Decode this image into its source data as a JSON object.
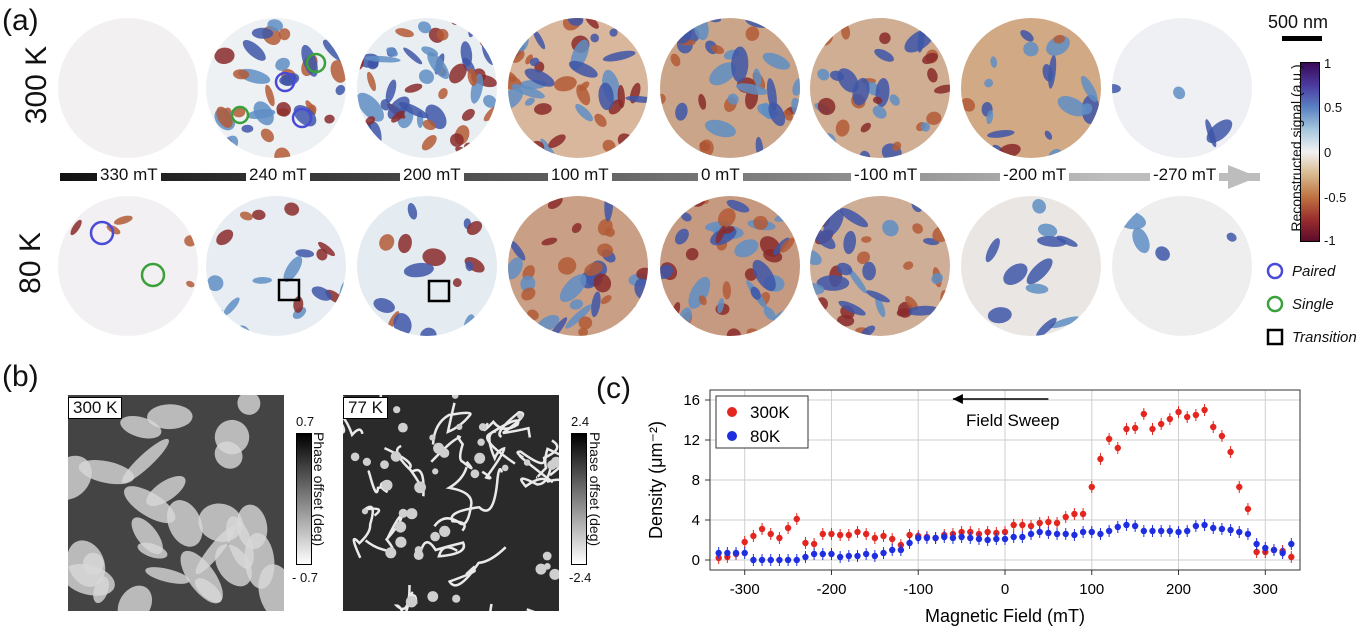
{
  "panel_a": {
    "label": "(a)",
    "row_top_temp": "300 K",
    "row_bottom_temp": "80 K",
    "fields": [
      "330 mT",
      "240 mT",
      "200 mT",
      "100 mT",
      "0 mT",
      "-100 mT",
      "-200 mT",
      "-270 mT"
    ],
    "scalebar": "500 nm",
    "colorbar": {
      "title": "Reconstructed signal (a.u.)",
      "ticks": [
        "1",
        "0.5",
        "0",
        "-0.5",
        "-1"
      ]
    },
    "legend": {
      "paired": "Paired",
      "single": "Single",
      "transition": "Transition"
    }
  },
  "panel_b": {
    "label": "(b)",
    "left": {
      "temp": "300 K",
      "max": "0.7",
      "min": "- 0.7",
      "title": "Phase offset (deg)"
    },
    "right": {
      "temp": "77 K",
      "max": "2.4",
      "min": "-2.4",
      "title": "Phase offset (deg)"
    }
  },
  "panel_c": {
    "label": "(c)"
  },
  "chart_data": {
    "type": "scatter",
    "xlabel": "Magnetic Field (mT)",
    "ylabel": "Density (μm⁻²)",
    "annotation": "Field Sweep",
    "xlim": [
      -340,
      340
    ],
    "ylim": [
      -1,
      17
    ],
    "xticks": [
      -300,
      -200,
      -100,
      0,
      100,
      200,
      300
    ],
    "yticks": [
      0,
      4,
      8,
      12,
      16
    ],
    "legend_position": "top-left",
    "series": [
      {
        "name": "300K",
        "color": "#e3261f",
        "x": [
          -330,
          -320,
          -310,
          -300,
          -290,
          -280,
          -270,
          -260,
          -250,
          -240,
          -230,
          -220,
          -210,
          -200,
          -190,
          -180,
          -170,
          -160,
          -150,
          -140,
          -130,
          -120,
          -110,
          -100,
          -90,
          -80,
          -70,
          -60,
          -50,
          -40,
          -30,
          -20,
          -10,
          0,
          10,
          20,
          30,
          40,
          50,
          60,
          70,
          80,
          90,
          100,
          110,
          120,
          130,
          140,
          150,
          160,
          170,
          180,
          190,
          200,
          210,
          220,
          230,
          240,
          250,
          260,
          270,
          280,
          290,
          300,
          310,
          320,
          330
        ],
        "y": [
          0.2,
          0.3,
          0.6,
          1.8,
          2.4,
          3.1,
          2.6,
          2.2,
          3.2,
          4.1,
          1.7,
          1.6,
          2.6,
          2.6,
          2.5,
          2.5,
          2.8,
          2.6,
          2.2,
          2.4,
          2.1,
          1.5,
          2.5,
          2.4,
          2.3,
          2.2,
          2.5,
          2.6,
          2.8,
          2.8,
          2.6,
          2.8,
          2.7,
          2.8,
          3.5,
          3.5,
          3.4,
          3.7,
          3.8,
          3.7,
          4.3,
          4.6,
          4.6,
          7.3,
          10.1,
          12.1,
          11.2,
          13.1,
          13.2,
          14.6,
          13.1,
          13.6,
          14.1,
          14.8,
          14.3,
          14.5,
          15.0,
          13.3,
          12.4,
          10.8,
          7.3,
          5.1,
          0.8,
          0.8,
          1.0,
          0.9,
          0.3
        ]
      },
      {
        "name": "80K",
        "color": "#1f2ee0",
        "x": [
          -330,
          -320,
          -310,
          -300,
          -290,
          -280,
          -270,
          -260,
          -250,
          -240,
          -230,
          -220,
          -210,
          -200,
          -190,
          -180,
          -170,
          -160,
          -150,
          -140,
          -130,
          -120,
          -110,
          -100,
          -90,
          -80,
          -70,
          -60,
          -50,
          -40,
          -30,
          -20,
          -10,
          0,
          10,
          20,
          30,
          40,
          50,
          60,
          70,
          80,
          90,
          100,
          110,
          120,
          130,
          140,
          150,
          160,
          170,
          180,
          190,
          200,
          210,
          220,
          230,
          240,
          250,
          260,
          270,
          280,
          290,
          300,
          310,
          320,
          330
        ],
        "y": [
          0.7,
          0.7,
          0.7,
          0.7,
          0.0,
          0.0,
          0.0,
          0.0,
          0.0,
          0.0,
          0.3,
          0.6,
          0.6,
          0.6,
          0.3,
          0.4,
          0.4,
          0.6,
          0.4,
          0.7,
          1.0,
          1.0,
          1.7,
          2.2,
          2.2,
          2.2,
          2.3,
          2.2,
          2.3,
          2.2,
          2.1,
          2.0,
          2.1,
          2.1,
          2.3,
          2.3,
          2.6,
          2.8,
          2.7,
          2.6,
          2.6,
          2.5,
          2.8,
          2.8,
          2.6,
          2.9,
          3.3,
          3.5,
          3.4,
          2.9,
          2.9,
          2.9,
          2.9,
          2.8,
          2.9,
          3.4,
          3.5,
          3.2,
          3.1,
          3.0,
          2.8,
          2.6,
          1.6,
          1.2,
          1.0,
          0.7,
          1.6
        ]
      }
    ]
  }
}
